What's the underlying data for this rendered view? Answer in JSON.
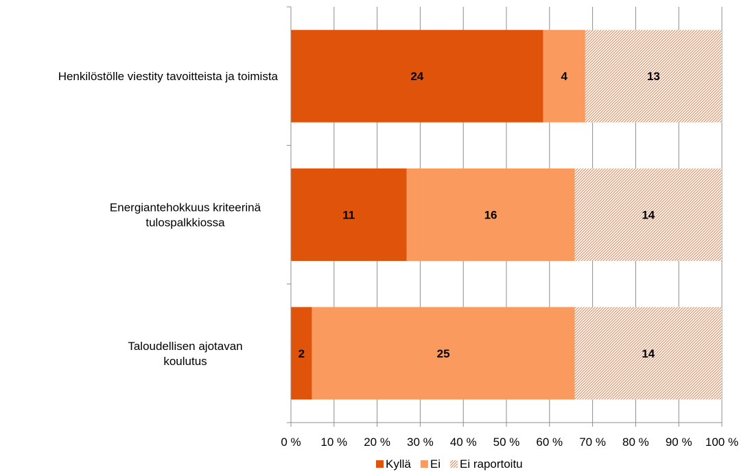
{
  "chart_data": {
    "type": "bar",
    "orientation": "horizontal",
    "stacking": "percent",
    "categories": [
      [
        "Henkilöstölle viestity tavoitteista ja toimista"
      ],
      [
        "Energiantehokkuus kriteerinä",
        "tulospalkkiossa"
      ],
      [
        "Taloudellisen ajotavan",
        "koulutus"
      ]
    ],
    "series": [
      {
        "name": "Kyllä",
        "values": [
          24,
          11,
          2
        ],
        "color": "#E0530B",
        "pattern": "solid"
      },
      {
        "name": "Ei",
        "values": [
          4,
          16,
          25
        ],
        "color": "#FA9A5E",
        "pattern": "solid"
      },
      {
        "name": "Ei raportoitu",
        "values": [
          13,
          14,
          14
        ],
        "color": "#F07A3A",
        "pattern": "diagonal-hatch"
      }
    ],
    "xticks": [
      "0 %",
      "10 %",
      "20 %",
      "30 %",
      "40 %",
      "50 %",
      "60 %",
      "70 %",
      "80 %",
      "90 %",
      "100 %"
    ],
    "xlim": [
      0,
      100
    ],
    "grid": "vertical",
    "data_labels": true,
    "legend_position": "bottom"
  }
}
